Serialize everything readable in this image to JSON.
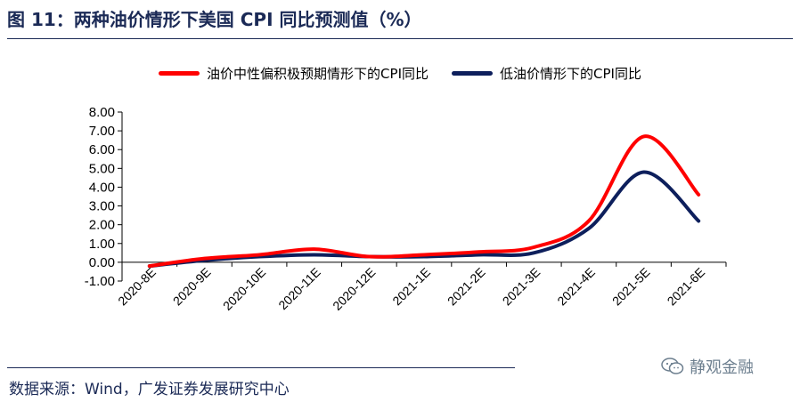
{
  "header": {
    "title": "图 11：两种油价情形下美国 CPI 同比预测值（%）"
  },
  "footer": {
    "source": "数据来源：Wind，广发证券发展研究中心",
    "watermark": "静观金融"
  },
  "chart_data": {
    "type": "line",
    "categories": [
      "2020-8E",
      "2020-9E",
      "2020-10E",
      "2020-11E",
      "2020-12E",
      "2021-1E",
      "2021-2E",
      "2021-3E",
      "2021-4E",
      "2021-5E",
      "2021-6E"
    ],
    "series": [
      {
        "name": "油价中性偏积极预期情形下的CPI同比",
        "color": "#ff0000",
        "values": [
          -0.2,
          0.2,
          0.4,
          0.7,
          0.3,
          0.4,
          0.55,
          0.8,
          2.2,
          6.7,
          3.6
        ]
      },
      {
        "name": "低油价情形下的CPI同比",
        "color": "#0d1f5c",
        "values": [
          -0.2,
          0.1,
          0.3,
          0.4,
          0.3,
          0.3,
          0.4,
          0.5,
          1.8,
          4.8,
          2.2
        ]
      }
    ],
    "y_ticks": [
      "8.00",
      "7.00",
      "6.00",
      "5.00",
      "4.00",
      "3.00",
      "2.00",
      "1.00",
      "0.00",
      "-1.00"
    ],
    "ylim": [
      -1,
      8
    ],
    "grid": false,
    "legend_position": "top-center"
  }
}
